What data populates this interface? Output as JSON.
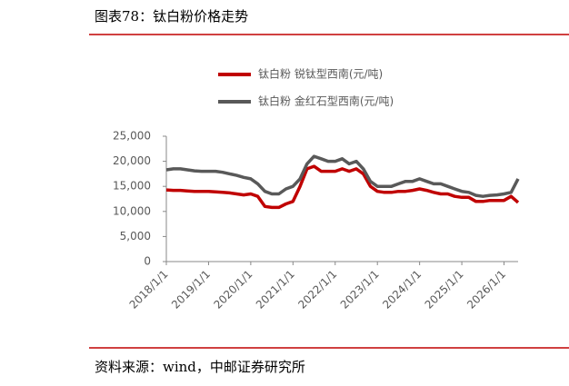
{
  "chart_data": {
    "type": "line",
    "title": "图表78：钛白粉价格走势",
    "source": "资料来源：wind，中邮证券研究所",
    "x": [
      "2018-01",
      "2018-03",
      "2018-05",
      "2018-07",
      "2018-09",
      "2018-11",
      "2019-01",
      "2019-03",
      "2019-05",
      "2019-07",
      "2019-09",
      "2019-11",
      "2020-01",
      "2020-03",
      "2020-05",
      "2020-07",
      "2020-09",
      "2020-11",
      "2021-01",
      "2021-03",
      "2021-05",
      "2021-07",
      "2021-09",
      "2021-11",
      "2022-01",
      "2022-03",
      "2022-05",
      "2022-07",
      "2022-09",
      "2022-11",
      "2023-01",
      "2023-03",
      "2023-05",
      "2023-07",
      "2023-09",
      "2023-11",
      "2024-01",
      "2024-03",
      "2024-05",
      "2024-07",
      "2024-09",
      "2024-11",
      "2025-01",
      "2025-03",
      "2025-05",
      "2025-07",
      "2025-09",
      "2025-11",
      "2026-01",
      "2026-03",
      "2026-05"
    ],
    "series": [
      {
        "name": "钛白粉 锐钛型西南(元/吨)",
        "color": "#c00000",
        "values": [
          14300,
          14200,
          14200,
          14100,
          14000,
          14000,
          14000,
          13900,
          13800,
          13700,
          13500,
          13300,
          13500,
          13000,
          11000,
          10800,
          10800,
          11500,
          12000,
          15000,
          18500,
          19000,
          18000,
          18000,
          18000,
          18500,
          18000,
          18500,
          17500,
          15000,
          14000,
          13800,
          13800,
          14000,
          14000,
          14200,
          14500,
          14200,
          13800,
          13500,
          13500,
          13000,
          12800,
          12800,
          12000,
          12000,
          12200,
          12200,
          12200,
          13000,
          11800
        ]
      },
      {
        "name": "钛白粉 金红石型西南(元/吨)",
        "color": "#595959",
        "values": [
          18300,
          18500,
          18500,
          18300,
          18100,
          18000,
          18000,
          18000,
          17800,
          17500,
          17200,
          16800,
          16500,
          15500,
          14000,
          13500,
          13500,
          14500,
          15000,
          16500,
          19500,
          21000,
          20500,
          20000,
          20000,
          20500,
          19500,
          20000,
          18500,
          16000,
          15000,
          15000,
          15000,
          15500,
          16000,
          16000,
          16500,
          16000,
          15500,
          15500,
          15000,
          14500,
          14000,
          13800,
          13200,
          13000,
          13200,
          13300,
          13500,
          13800,
          16500
        ]
      }
    ],
    "xlim": [
      "2018-01",
      "2026-05"
    ],
    "xticks": [
      "2018/1/1",
      "2019/1/1",
      "2020/1/1",
      "2021/1/1",
      "2022/1/1",
      "2023/1/1",
      "2024/1/1",
      "2025/1/1",
      "2026/1/1"
    ],
    "ylim": [
      0,
      25000
    ],
    "yticks": [
      0,
      {
        "value": 5000,
        "label": "5,000"
      },
      {
        "value": 10000,
        "label": "10,000"
      },
      {
        "value": 15000,
        "label": "15,000"
      },
      {
        "value": 20000,
        "label": "20,000"
      },
      {
        "value": 25000,
        "label": "25,000"
      }
    ]
  }
}
